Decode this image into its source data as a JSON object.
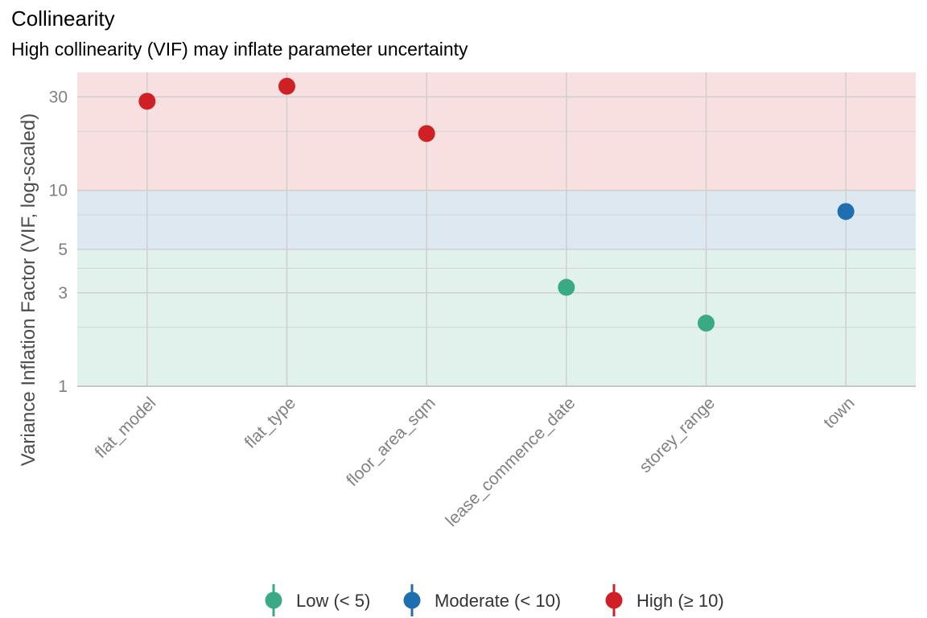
{
  "title": "Collinearity",
  "subtitle": "High collinearity (VIF) may inflate parameter uncertainty",
  "chart_data": {
    "type": "scatter",
    "title": "Collinearity",
    "subtitle": "High collinearity (VIF) may inflate parameter uncertainty",
    "xlabel": "",
    "ylabel": "Variance Inflation Factor (VIF, log-scaled)",
    "yscale": "log",
    "ylim": [
      1,
      40
    ],
    "yticks": [
      1,
      3,
      5,
      10,
      30
    ],
    "ytick_labels": [
      "1",
      "3",
      "5",
      "10",
      "30"
    ],
    "categories": [
      "flat_model",
      "flat_type",
      "floor_area_sqm",
      "lease_commence_date",
      "storey_range",
      "town"
    ],
    "values": [
      28.5,
      34.0,
      19.5,
      3.2,
      2.1,
      7.8
    ],
    "groups": [
      "High (≥ 10)",
      "High (≥ 10)",
      "High (≥ 10)",
      "Low (< 5)",
      "Low (< 5)",
      "Moderate (< 10)"
    ],
    "bands": [
      {
        "name": "Low (< 5)",
        "from": 1,
        "to": 5,
        "color": "#e1f1ec"
      },
      {
        "name": "Moderate (< 10)",
        "from": 5,
        "to": 10,
        "color": "#dde8f1"
      },
      {
        "name": "High (≥ 10)",
        "from": 10,
        "to": 40,
        "color": "#f8dfe0"
      }
    ],
    "legend": {
      "position": "bottom",
      "entries": [
        {
          "label": "Low (< 5)",
          "color": "#3aaa84"
        },
        {
          "label": "Moderate (< 10)",
          "color": "#1f6fb0"
        },
        {
          "label": "High (≥ 10)",
          "color": "#cf2025"
        }
      ]
    },
    "grid": true
  }
}
